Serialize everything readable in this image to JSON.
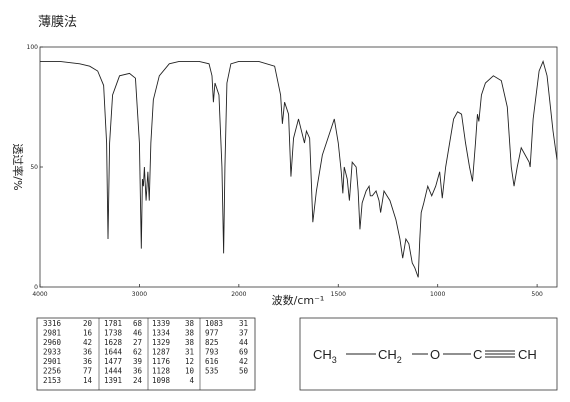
{
  "chart_data": {
    "type": "line",
    "title": "薄膜法",
    "x_label": "波数/cm⁻¹",
    "y_label": "透过率/%",
    "xlim": [
      4000,
      400
    ],
    "xticks": [
      4000,
      3000,
      2000,
      1500,
      1000,
      500
    ],
    "ylim": [
      0,
      100
    ],
    "yticks": [
      0,
      50,
      100
    ],
    "color": "#222222",
    "x": [
      4000,
      3800,
      3600,
      3500,
      3420,
      3360,
      3330,
      3316,
      3300,
      3270,
      3200,
      3100,
      3040,
      3000,
      2981,
      2970,
      2960,
      2950,
      2933,
      2915,
      2901,
      2885,
      2860,
      2800,
      2700,
      2600,
      2400,
      2300,
      2270,
      2256,
      2240,
      2200,
      2170,
      2153,
      2140,
      2120,
      2080,
      2000,
      1900,
      1820,
      1790,
      1781,
      1770,
      1750,
      1738,
      1725,
      1700,
      1670,
      1660,
      1644,
      1636,
      1628,
      1610,
      1580,
      1560,
      1540,
      1520,
      1500,
      1485,
      1477,
      1470,
      1455,
      1444,
      1430,
      1410,
      1400,
      1391,
      1380,
      1360,
      1345,
      1339,
      1334,
      1329,
      1310,
      1295,
      1287,
      1270,
      1240,
      1210,
      1190,
      1176,
      1160,
      1145,
      1128,
      1115,
      1098,
      1090,
      1083,
      1070,
      1050,
      1030,
      1010,
      990,
      977,
      960,
      940,
      920,
      900,
      880,
      860,
      840,
      825,
      810,
      800,
      793,
      780,
      760,
      720,
      680,
      650,
      630,
      616,
      600,
      580,
      560,
      540,
      535,
      520,
      490,
      470,
      450,
      420,
      400
    ],
    "values": [
      94,
      94,
      93,
      92,
      90,
      84,
      60,
      20,
      60,
      80,
      88,
      89,
      87,
      60,
      16,
      45,
      42,
      50,
      36,
      48,
      36,
      60,
      78,
      88,
      93,
      94,
      94,
      93,
      88,
      77,
      85,
      80,
      50,
      14,
      50,
      85,
      93,
      94,
      94,
      92,
      80,
      68,
      77,
      72,
      46,
      62,
      70,
      60,
      65,
      62,
      45,
      27,
      40,
      55,
      60,
      65,
      70,
      60,
      48,
      39,
      50,
      45,
      36,
      52,
      50,
      40,
      24,
      35,
      40,
      42,
      38,
      38,
      38,
      40,
      36,
      31,
      40,
      36,
      28,
      20,
      12,
      20,
      18,
      10,
      8,
      4,
      20,
      31,
      35,
      42,
      38,
      42,
      48,
      37,
      50,
      60,
      70,
      73,
      72,
      60,
      50,
      44,
      60,
      72,
      69,
      80,
      85,
      88,
      86,
      75,
      50,
      42,
      50,
      58,
      55,
      52,
      50,
      70,
      90,
      94,
      88,
      65,
      53
    ]
  },
  "peak_table": {
    "columns": [
      [
        [
          3316,
          20
        ],
        [
          2981,
          16
        ],
        [
          2960,
          42
        ],
        [
          2933,
          36
        ],
        [
          2901,
          36
        ],
        [
          2256,
          77
        ],
        [
          2153,
          14
        ]
      ],
      [
        [
          1781,
          68
        ],
        [
          1738,
          46
        ],
        [
          1628,
          27
        ],
        [
          1644,
          62
        ],
        [
          1477,
          39
        ],
        [
          1444,
          36
        ],
        [
          1391,
          24
        ]
      ],
      [
        [
          1339,
          38
        ],
        [
          1334,
          38
        ],
        [
          1329,
          38
        ],
        [
          1287,
          31
        ],
        [
          1176,
          12
        ],
        [
          1128,
          10
        ],
        [
          1098,
          4
        ]
      ],
      [
        [
          1083,
          31
        ],
        [
          977,
          37
        ],
        [
          825,
          44
        ],
        [
          793,
          69
        ],
        [
          616,
          42
        ],
        [
          535,
          50
        ]
      ]
    ]
  },
  "structure": {
    "groups": [
      {
        "text": "CH",
        "sub": "3"
      },
      {
        "text": "CH",
        "sub": "2"
      },
      {
        "text": "O"
      },
      {
        "text": "C"
      },
      {
        "text": "CH"
      }
    ]
  }
}
